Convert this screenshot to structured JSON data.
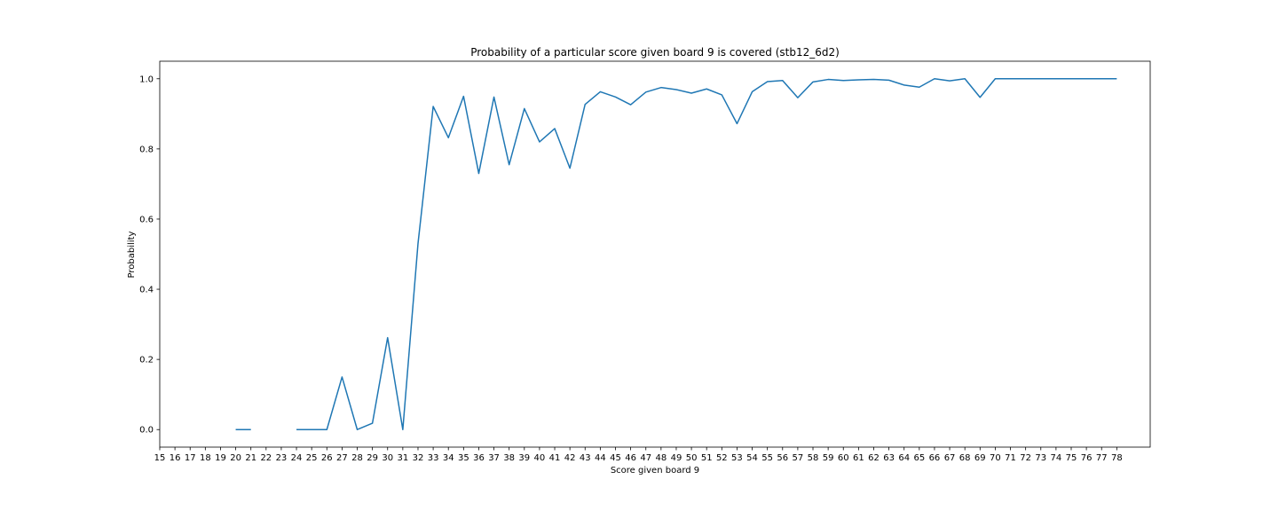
{
  "chart_data": {
    "type": "line",
    "title": "Probability of a particular score given board 9 is covered (stb12_6d2)",
    "xlabel": "Score given board 9",
    "ylabel": "Probability",
    "x_ticks": [
      15,
      16,
      17,
      18,
      19,
      20,
      21,
      22,
      23,
      24,
      25,
      26,
      27,
      28,
      29,
      30,
      31,
      32,
      33,
      34,
      35,
      36,
      37,
      38,
      39,
      40,
      41,
      42,
      43,
      44,
      45,
      46,
      47,
      48,
      49,
      50,
      51,
      52,
      53,
      54,
      55,
      56,
      57,
      58,
      59,
      60,
      61,
      62,
      63,
      64,
      65,
      66,
      67,
      68,
      69,
      70,
      71,
      72,
      73,
      74,
      75,
      76,
      77,
      78
    ],
    "y_ticks": [
      0.0,
      0.2,
      0.4,
      0.6,
      0.8,
      1.0
    ],
    "y_tick_labels": [
      "0.0",
      "0.2",
      "0.4",
      "0.6",
      "0.8",
      "1.0"
    ],
    "xlim": [
      15,
      80.2
    ],
    "ylim": [
      -0.05,
      1.05
    ],
    "grid": false,
    "color": "#1f77b4",
    "segments": [
      {
        "x": [
          20,
          21
        ],
        "y": [
          0.0,
          0.0
        ]
      },
      {
        "x": [
          24,
          25,
          26,
          27,
          28,
          29,
          30,
          31,
          32,
          33,
          34,
          35,
          36,
          37,
          38,
          39,
          40,
          41,
          42,
          43,
          44,
          45,
          46,
          47,
          48,
          49,
          50,
          51,
          52,
          53,
          54,
          55,
          56,
          57,
          58,
          59,
          60,
          61,
          62,
          63,
          64,
          65,
          66,
          67,
          68,
          69,
          70,
          71,
          72,
          73,
          74,
          75,
          76,
          77,
          78
        ],
        "y": [
          0.0,
          0.0,
          0.0,
          0.15,
          0.0,
          0.018,
          0.262,
          0.0,
          0.53,
          0.921,
          0.832,
          0.95,
          0.73,
          0.948,
          0.755,
          0.915,
          0.82,
          0.858,
          0.745,
          0.927,
          0.963,
          0.948,
          0.926,
          0.962,
          0.975,
          0.969,
          0.959,
          0.971,
          0.954,
          0.872,
          0.963,
          0.992,
          0.995,
          0.946,
          0.991,
          0.998,
          0.995,
          0.997,
          0.998,
          0.996,
          0.982,
          0.976,
          1.0,
          0.994,
          1.0,
          0.947,
          1.0,
          1.0,
          1.0,
          1.0,
          1.0,
          1.0,
          1.0,
          1.0,
          1.0
        ]
      }
    ]
  }
}
